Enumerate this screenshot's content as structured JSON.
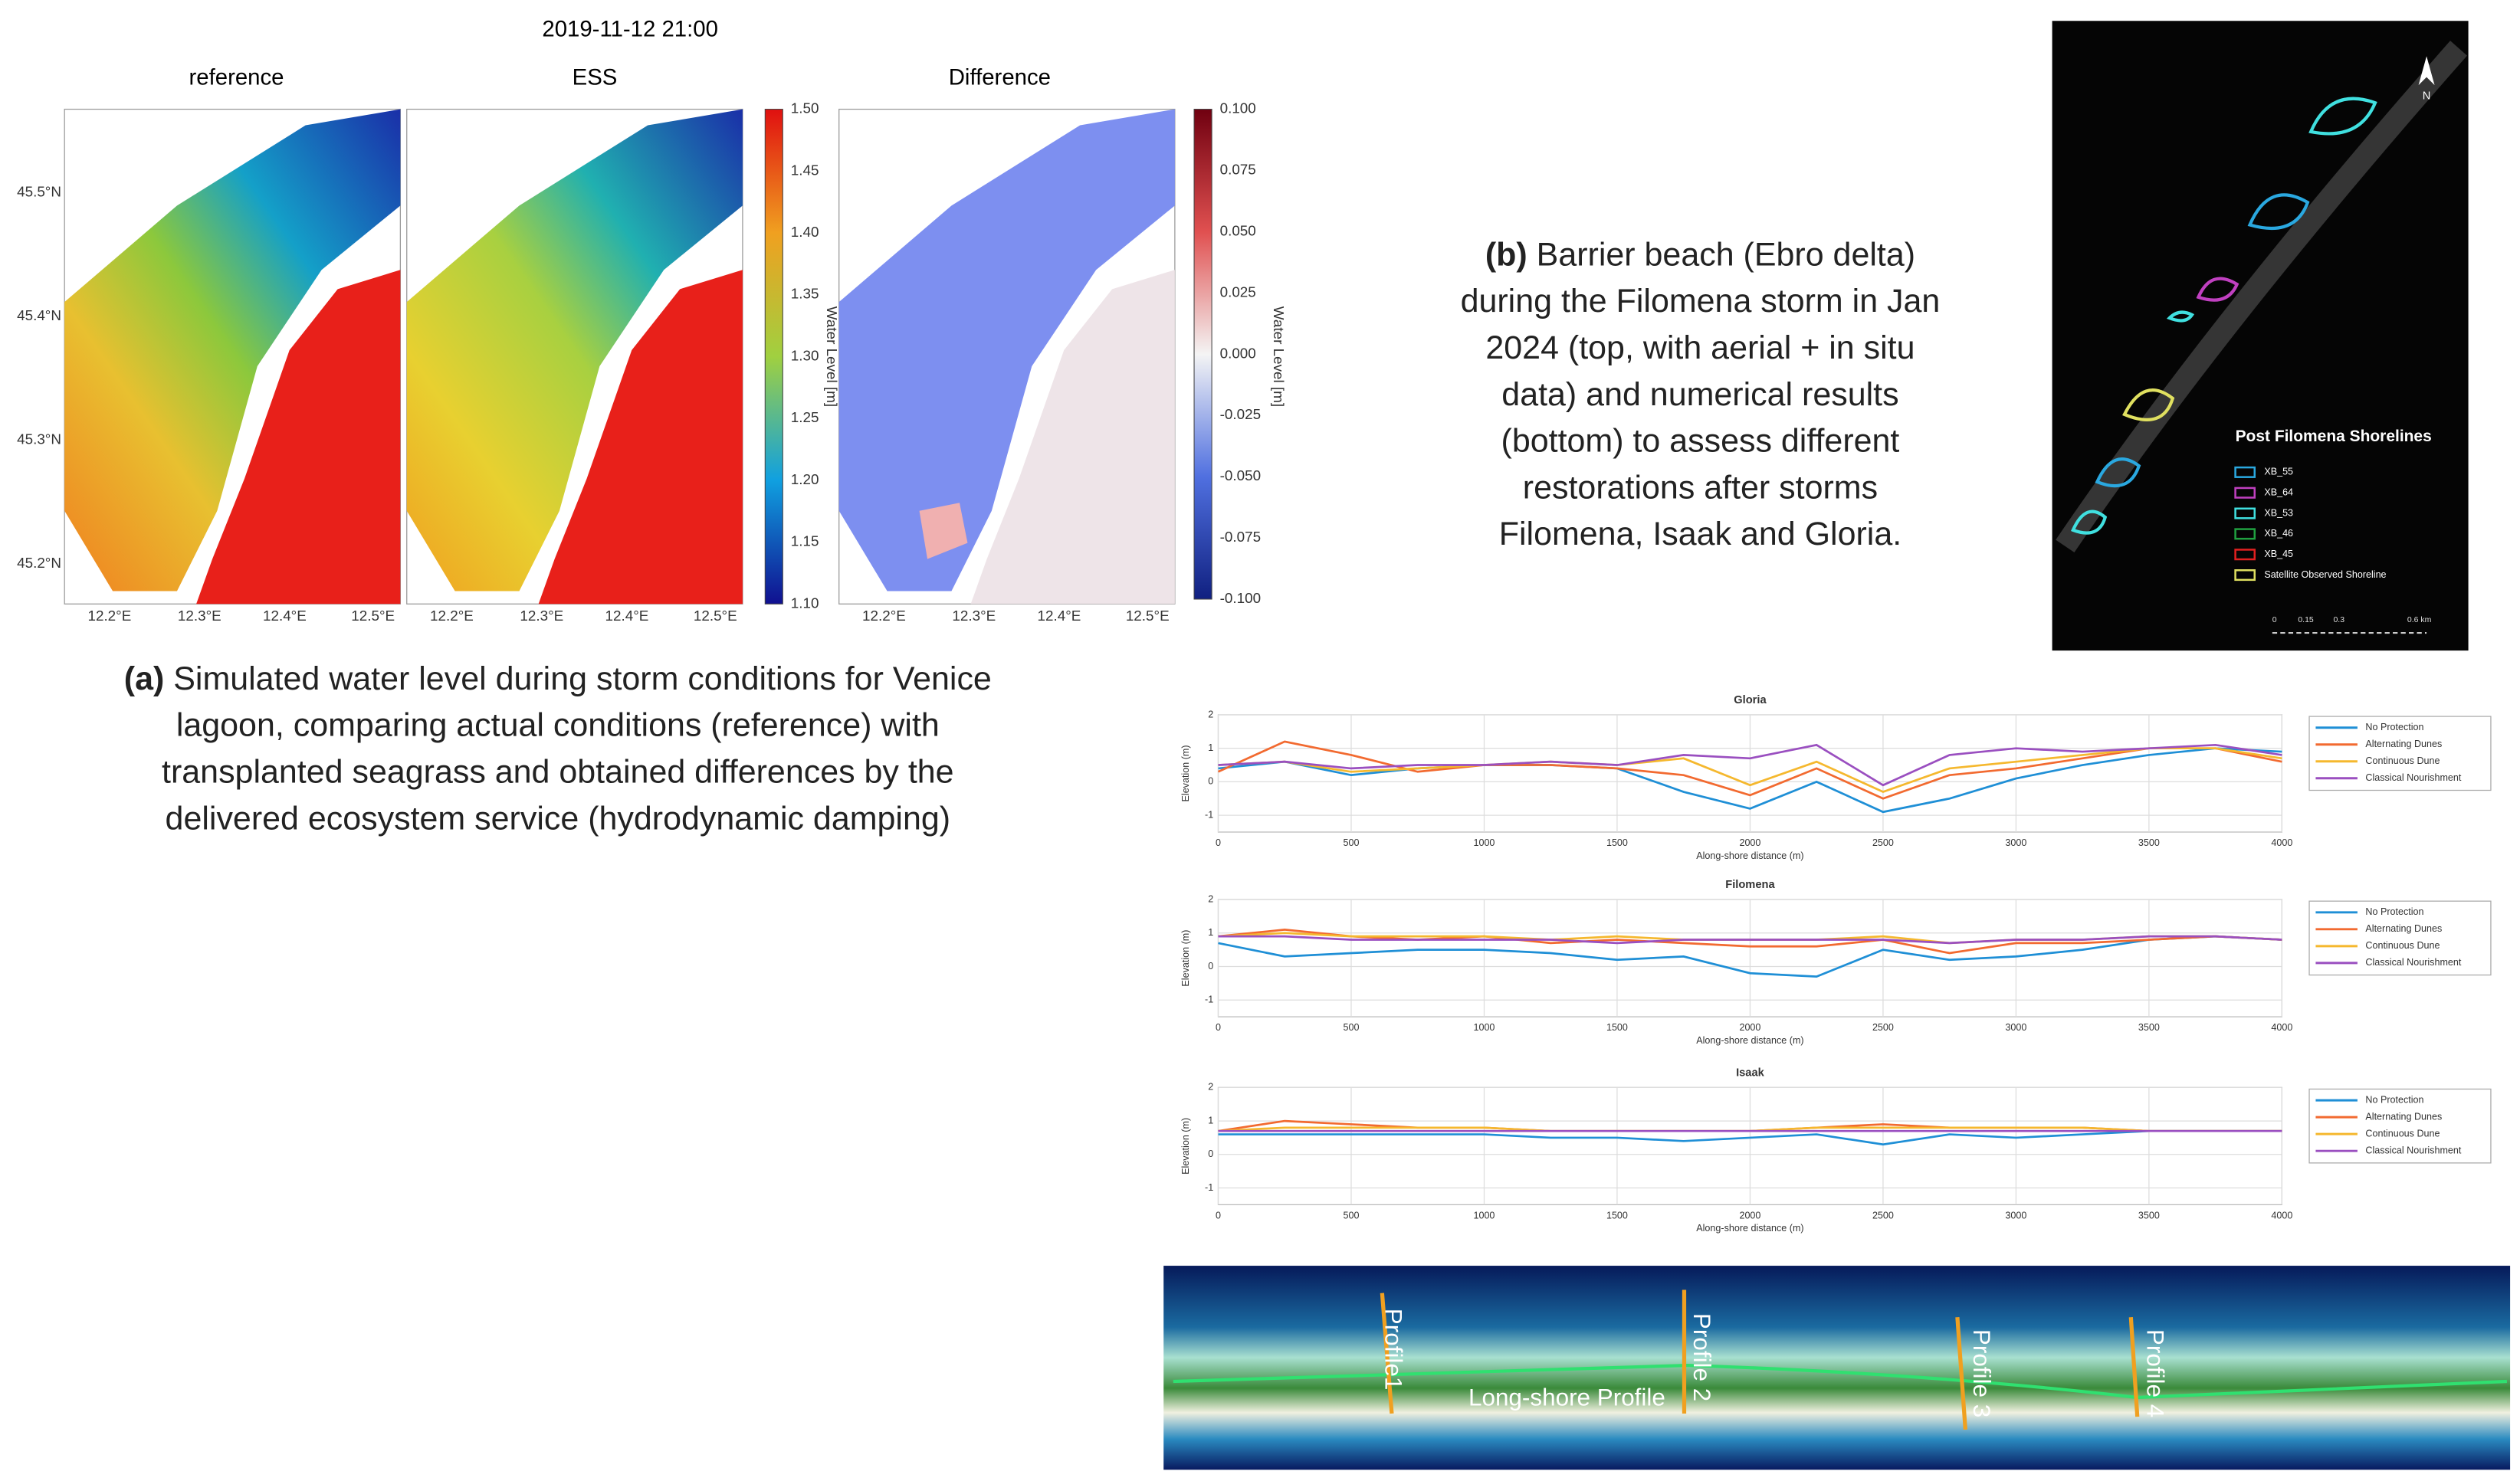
{
  "panel_a": {
    "timestamp": "2019-11-12 21:00",
    "titles": [
      "reference",
      "ESS",
      "Difference"
    ],
    "lat_ticks": [
      "45.5°N",
      "45.4°N",
      "45.3°N",
      "45.2°N"
    ],
    "lon_ticks": [
      "12.2°E",
      "12.3°E",
      "12.4°E",
      "12.5°E"
    ],
    "colorbar_label": "Water Level [m]",
    "colorbar_ticks": [
      "1.50",
      "1.45",
      "1.40",
      "1.35",
      "1.30",
      "1.25",
      "1.20",
      "1.15",
      "1.10"
    ],
    "difference_ticks": [
      "0.100",
      "0.075",
      "0.050",
      "0.025",
      "0.000",
      "-0.025",
      "-0.050",
      "-0.075",
      "-0.100"
    ],
    "caption": {
      "label": "(a)",
      "lines": [
        "Simulated water level during storm conditions for Venice",
        "lagoon, comparing actual conditions (reference) with",
        "transplanted seagrass and obtained differences by the",
        "delivered ecosystem service (hydrodynamic damping)"
      ]
    }
  },
  "panel_b": {
    "caption": {
      "label": "(b)",
      "lines": [
        "Barrier beach (Ebro delta)",
        "during the Filomena storm in Jan",
        "2024 (top, with aerial + in situ",
        "data) and numerical results",
        "(bottom) to assess different",
        "restorations after storms",
        "Filomena, Isaak and Gloria."
      ]
    },
    "map": {
      "north": "N",
      "legend_title": "Post Filomena Shorelines",
      "legend": [
        {
          "name": "XB_55",
          "color": "#2aa8e0"
        },
        {
          "name": "XB_64",
          "color": "#c040c0"
        },
        {
          "name": "XB_53",
          "color": "#40e0e0"
        },
        {
          "name": "XB_46",
          "color": "#20a040"
        },
        {
          "name": "XB_45",
          "color": "#e02020"
        },
        {
          "name": "Satellite Observed Shoreline",
          "color": "#e0e060"
        }
      ],
      "scale": [
        "0",
        "0.15",
        "0.3",
        "0.6 km"
      ]
    },
    "profiles": {
      "labels": [
        "Profile1",
        "Profile 2",
        "Profile 3",
        "Profile 4"
      ],
      "longshore": "Long-shore Profile"
    }
  },
  "chart_data": [
    {
      "type": "line",
      "title": "Gloria",
      "xlabel": "Along-shore distance (m)",
      "ylabel": "Elevation (m)",
      "x": [
        0,
        250,
        500,
        750,
        1000,
        1250,
        1500,
        1750,
        2000,
        2250,
        2500,
        2750,
        3000,
        3250,
        3500,
        3750,
        4000
      ],
      "xlim": [
        0,
        4000
      ],
      "ylim": [
        -1.5,
        2
      ],
      "xticks": [
        0,
        500,
        1000,
        1500,
        2000,
        2500,
        3000,
        3500,
        4000
      ],
      "yticks": [
        -1,
        0,
        1,
        2
      ],
      "grid": true,
      "legend": "right",
      "series": [
        {
          "name": "No Protection",
          "color": "#1f8fd6",
          "values": [
            0.4,
            0.6,
            0.2,
            0.4,
            0.5,
            0.5,
            0.4,
            -0.3,
            -0.8,
            0,
            -0.9,
            -0.5,
            0.1,
            0.5,
            0.8,
            1.0,
            0.9
          ]
        },
        {
          "name": "Alternating Dunes",
          "color": "#f26a30",
          "values": [
            0.3,
            1.2,
            0.8,
            0.3,
            0.5,
            0.5,
            0.4,
            0.2,
            -0.4,
            0.4,
            -0.5,
            0.2,
            0.4,
            0.7,
            1.0,
            1.0,
            0.6
          ]
        },
        {
          "name": "Continuous Dune",
          "color": "#f5b82e",
          "values": [
            0.5,
            0.6,
            0.3,
            0.4,
            0.5,
            0.6,
            0.5,
            0.7,
            -0.1,
            0.6,
            -0.3,
            0.4,
            0.6,
            0.8,
            1.0,
            1.0,
            0.7
          ]
        },
        {
          "name": "Classical Nourishment",
          "color": "#9a4fc0",
          "values": [
            0.5,
            0.6,
            0.4,
            0.5,
            0.5,
            0.6,
            0.5,
            0.8,
            0.7,
            1.1,
            -0.1,
            0.8,
            1.0,
            0.9,
            1.0,
            1.1,
            0.8
          ]
        }
      ]
    },
    {
      "type": "line",
      "title": "Filomena",
      "xlabel": "Along-shore distance (m)",
      "ylabel": "Elevation (m)",
      "x": [
        0,
        250,
        500,
        750,
        1000,
        1250,
        1500,
        1750,
        2000,
        2250,
        2500,
        2750,
        3000,
        3250,
        3500,
        3750,
        4000
      ],
      "xlim": [
        0,
        4000
      ],
      "ylim": [
        -1.5,
        2
      ],
      "xticks": [
        0,
        500,
        1000,
        1500,
        2000,
        2500,
        3000,
        3500,
        4000
      ],
      "yticks": [
        -1,
        0,
        1,
        2
      ],
      "grid": true,
      "legend": "right",
      "series": [
        {
          "name": "No Protection",
          "color": "#1f8fd6",
          "values": [
            0.7,
            0.3,
            0.4,
            0.5,
            0.5,
            0.4,
            0.2,
            0.3,
            -0.2,
            -0.3,
            0.5,
            0.2,
            0.3,
            0.5,
            0.8,
            0.9,
            0.8
          ]
        },
        {
          "name": "Alternating Dunes",
          "color": "#f26a30",
          "values": [
            0.9,
            1.1,
            0.9,
            0.8,
            0.9,
            0.7,
            0.8,
            0.7,
            0.6,
            0.6,
            0.8,
            0.4,
            0.7,
            0.7,
            0.8,
            0.9,
            0.8
          ]
        },
        {
          "name": "Continuous Dune",
          "color": "#f5b82e",
          "values": [
            0.9,
            1.0,
            0.9,
            0.9,
            0.9,
            0.8,
            0.9,
            0.8,
            0.8,
            0.8,
            0.9,
            0.7,
            0.8,
            0.8,
            0.9,
            0.9,
            0.8
          ]
        },
        {
          "name": "Classical Nourishment",
          "color": "#9a4fc0",
          "values": [
            0.9,
            0.9,
            0.8,
            0.8,
            0.8,
            0.8,
            0.7,
            0.8,
            0.8,
            0.8,
            0.8,
            0.7,
            0.8,
            0.8,
            0.9,
            0.9,
            0.8
          ]
        }
      ]
    },
    {
      "type": "line",
      "title": "Isaak",
      "xlabel": "Along-shore distance (m)",
      "ylabel": "Elevation (m)",
      "x": [
        0,
        250,
        500,
        750,
        1000,
        1250,
        1500,
        1750,
        2000,
        2250,
        2500,
        2750,
        3000,
        3250,
        3500,
        3750,
        4000
      ],
      "xlim": [
        0,
        4000
      ],
      "ylim": [
        -1.5,
        2
      ],
      "xticks": [
        0,
        500,
        1000,
        1500,
        2000,
        2500,
        3000,
        3500,
        4000
      ],
      "yticks": [
        -1,
        0,
        1,
        2
      ],
      "grid": true,
      "legend": "right",
      "series": [
        {
          "name": "No Protection",
          "color": "#1f8fd6",
          "values": [
            0.6,
            0.6,
            0.6,
            0.6,
            0.6,
            0.5,
            0.5,
            0.4,
            0.5,
            0.6,
            0.3,
            0.6,
            0.5,
            0.6,
            0.7,
            0.7,
            0.7
          ]
        },
        {
          "name": "Alternating Dunes",
          "color": "#f26a30",
          "values": [
            0.7,
            1.0,
            0.9,
            0.8,
            0.8,
            0.7,
            0.7,
            0.7,
            0.7,
            0.8,
            0.9,
            0.8,
            0.8,
            0.8,
            0.7,
            0.7,
            0.7
          ]
        },
        {
          "name": "Continuous Dune",
          "color": "#f5b82e",
          "values": [
            0.7,
            0.8,
            0.8,
            0.8,
            0.8,
            0.7,
            0.7,
            0.7,
            0.7,
            0.8,
            0.8,
            0.8,
            0.8,
            0.8,
            0.7,
            0.7,
            0.7
          ]
        },
        {
          "name": "Classical Nourishment",
          "color": "#9a4fc0",
          "values": [
            0.7,
            0.7,
            0.7,
            0.7,
            0.7,
            0.7,
            0.7,
            0.7,
            0.7,
            0.7,
            0.7,
            0.7,
            0.7,
            0.7,
            0.7,
            0.7,
            0.7
          ]
        }
      ]
    }
  ]
}
